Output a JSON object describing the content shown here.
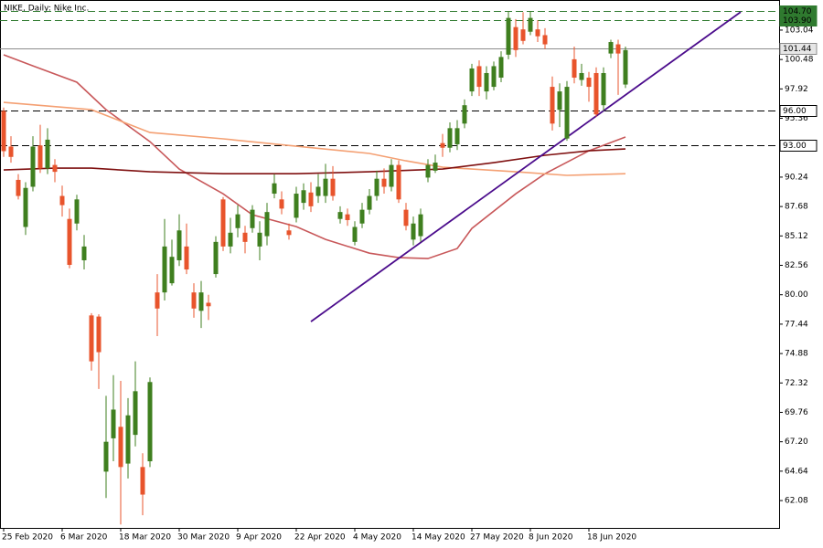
{
  "chart_data": {
    "type": "candlestick",
    "title": "NIKE, Daily:  Nike Inc.",
    "categories": [
      "25 Feb 2020",
      null,
      null,
      null,
      null,
      null,
      null,
      null,
      "6 Mar 2020",
      null,
      null,
      null,
      null,
      null,
      null,
      null,
      "18 Mar 2020",
      null,
      null,
      null,
      null,
      null,
      null,
      null,
      "30 Mar 2020",
      null,
      null,
      null,
      null,
      null,
      null,
      null,
      "9 Apr 2020",
      null,
      null,
      null,
      null,
      null,
      null,
      null,
      "22 Apr 2020",
      null,
      null,
      null,
      null,
      null,
      null,
      null,
      "4 May 2020",
      null,
      null,
      null,
      null,
      null,
      null,
      null,
      "14 May 2020",
      null,
      null,
      null,
      null,
      null,
      null,
      null,
      "27 May 2020",
      null,
      null,
      null,
      null,
      null,
      null,
      null,
      "8 Jun 2020",
      null,
      null,
      null,
      null,
      null,
      null,
      null,
      "18 Jun 2020",
      null,
      null,
      null,
      null,
      null
    ],
    "open": [
      96.0,
      92.9,
      90.0,
      85.9,
      89.4,
      93.0,
      91.0,
      91.3,
      88.6,
      86.6,
      86.2,
      83.0,
      78.2,
      78.1,
      64.6,
      67.5,
      68.5,
      65.3,
      67.8,
      65.0,
      65.5,
      80.2,
      80.2,
      81.0,
      83.0,
      84.2,
      80.2,
      78.6,
      79.3,
      81.8,
      88.3,
      84.2,
      85.8,
      85.4,
      85.8,
      84.2,
      85.1,
      88.8,
      88.3,
      85.6,
      86.7,
      88.0,
      88.9,
      88.6,
      88.6,
      90.1,
      86.6,
      87.0,
      84.6,
      86.2,
      87.4,
      88.6,
      90.1,
      89.4,
      91.3,
      87.4,
      84.8,
      85.1,
      90.2,
      90.8,
      93.2,
      92.8,
      93.1,
      94.9,
      97.7,
      99.9,
      97.7,
      98.1,
      98.9,
      100.9,
      103.3,
      103.1,
      102.9,
      103.1,
      102.6,
      98.1,
      96.1,
      93.6,
      100.5,
      98.7,
      98.9,
      99.3,
      96.5,
      101.0,
      101.8,
      98.3
    ],
    "high": [
      96.3,
      93.8,
      90.5,
      89.8,
      93.8,
      94.8,
      94.5,
      91.8,
      89.5,
      87.5,
      88.7,
      85.2,
      78.4,
      78.3,
      71.2,
      73.0,
      72.5,
      71.0,
      74.2,
      66.2,
      72.8,
      81.8,
      86.6,
      84.8,
      87.0,
      86.2,
      81.0,
      81.2,
      80.0,
      85.1,
      88.5,
      86.7,
      87.8,
      86.0,
      87.8,
      86.4,
      88.0,
      90.5,
      89.0,
      86.2,
      89.4,
      89.7,
      89.8,
      90.5,
      91.4,
      91.2,
      87.7,
      87.5,
      86.4,
      88.0,
      89.2,
      90.8,
      91.0,
      91.8,
      91.7,
      88.0,
      86.8,
      87.5,
      91.8,
      92.2,
      94.0,
      95.0,
      95.2,
      97.0,
      100.1,
      100.4,
      99.9,
      100.3,
      101.2,
      104.7,
      104.0,
      104.6,
      104.7,
      103.9,
      103.2,
      99.0,
      98.4,
      98.6,
      101.6,
      100.1,
      99.4,
      99.8,
      99.8,
      102.2,
      102.2,
      101.6
    ],
    "low": [
      92.0,
      91.5,
      88.3,
      85.2,
      89.0,
      90.6,
      90.5,
      89.8,
      86.8,
      82.3,
      85.6,
      82.2,
      73.4,
      71.8,
      62.3,
      65.5,
      60.0,
      64.0,
      66.8,
      60.8,
      65.0,
      76.4,
      79.5,
      80.8,
      82.5,
      81.8,
      78.0,
      77.1,
      77.8,
      81.5,
      83.8,
      83.6,
      85.0,
      83.6,
      85.4,
      83.0,
      84.3,
      88.4,
      87.0,
      84.8,
      86.3,
      87.4,
      87.2,
      88.0,
      88.0,
      88.2,
      86.2,
      86.0,
      84.3,
      85.8,
      87.0,
      88.2,
      88.8,
      89.0,
      88.0,
      85.6,
      84.3,
      84.6,
      89.8,
      90.6,
      92.0,
      92.4,
      92.6,
      94.5,
      97.3,
      97.3,
      97.0,
      97.8,
      98.5,
      100.5,
      100.7,
      101.8,
      102.6,
      102.0,
      101.4,
      94.3,
      94.6,
      93.4,
      98.4,
      98.2,
      96.8,
      95.5,
      96.0,
      100.6,
      97.4,
      98.0
    ],
    "close": [
      92.5,
      92.0,
      88.6,
      89.3,
      92.9,
      91.0,
      93.5,
      90.7,
      87.8,
      82.6,
      88.3,
      84.2,
      74.2,
      75.0,
      67.2,
      70.0,
      65.0,
      69.5,
      71.6,
      62.6,
      72.4,
      78.8,
      84.2,
      83.3,
      85.6,
      82.2,
      78.8,
      80.2,
      79.0,
      84.6,
      84.2,
      85.4,
      87.0,
      84.6,
      87.4,
      85.4,
      87.2,
      89.7,
      87.5,
      85.2,
      88.8,
      89.1,
      87.7,
      89.4,
      90.1,
      88.6,
      87.2,
      86.5,
      85.9,
      87.4,
      88.6,
      90.1,
      89.4,
      91.3,
      88.3,
      86.0,
      86.2,
      87.0,
      91.3,
      91.5,
      92.8,
      94.5,
      94.5,
      96.5,
      99.7,
      98.1,
      99.3,
      99.9,
      100.7,
      104.1,
      101.3,
      102.1,
      104.1,
      102.5,
      101.8,
      94.9,
      97.7,
      98.1,
      98.9,
      99.3,
      98.1,
      95.7,
      99.3,
      102.0,
      101.0,
      101.3
    ],
    "up_color": "#3f7f1f",
    "down_color": "#e8542c",
    "series": [
      {
        "color": "#c8585a",
        "x": [
          0,
          4,
          10,
          14,
          20,
          24,
          30,
          34,
          40,
          44,
          50,
          54,
          58,
          62,
          64,
          70,
          74,
          80,
          85
        ],
        "values": [
          100.89,
          99.93,
          98.5,
          96.11,
          93.33,
          90.94,
          88.79,
          86.96,
          85.93,
          84.82,
          83.62,
          83.23,
          83.15,
          84.02,
          85.77,
          88.79,
          90.54,
          92.53,
          93.73
        ]
      },
      {
        "color": "#f4a073",
        "x": [
          0,
          12,
          20,
          30,
          40,
          50,
          55,
          60,
          70,
          77,
          85
        ],
        "values": [
          96.75,
          96.11,
          94.12,
          93.57,
          92.93,
          92.3,
          91.66,
          91.1,
          90.7,
          90.39,
          90.54
        ]
      },
      {
        "color": "#7f1010",
        "x": [
          0,
          7,
          12,
          20,
          30,
          40,
          50,
          60,
          67,
          74,
          80,
          85
        ],
        "values": [
          90.86,
          91.02,
          91.02,
          90.7,
          90.54,
          90.54,
          90.7,
          90.94,
          91.5,
          92.14,
          92.53,
          92.69
        ]
      },
      {
        "color": "#4b0c8c",
        "x": [
          42,
          100.75
        ],
        "values": [
          77.66,
          104.62
        ]
      }
    ],
    "levels": [
      {
        "value": 104.7,
        "label": "104.70",
        "color": "#2f7a2f",
        "style": "dashed"
      },
      {
        "value": 103.9,
        "label": "103.90",
        "color": "#2f7a2f",
        "style": "dashed"
      },
      {
        "value": 101.44,
        "label": "101.44",
        "color": "#8c8c8c",
        "style": "solid"
      },
      {
        "value": 96,
        "label": "96.00",
        "color": "#000000",
        "style": "dashed"
      },
      {
        "value": 93,
        "label": "93.00",
        "color": "#000000",
        "style": "dashed"
      }
    ],
    "xlim": [
      -0.5,
      106
    ],
    "ylim": [
      59.7,
      105.66
    ],
    "yticks": [
      62.08,
      64.64,
      {
        "value": 67.2,
        "label": "67.20"
      },
      69.76,
      72.32,
      74.88,
      77.44,
      {
        "value": 80,
        "label": "80.00"
      },
      82.56,
      85.12,
      87.68,
      90.24,
      95.36,
      97.92,
      100.48,
      103.04
    ]
  }
}
